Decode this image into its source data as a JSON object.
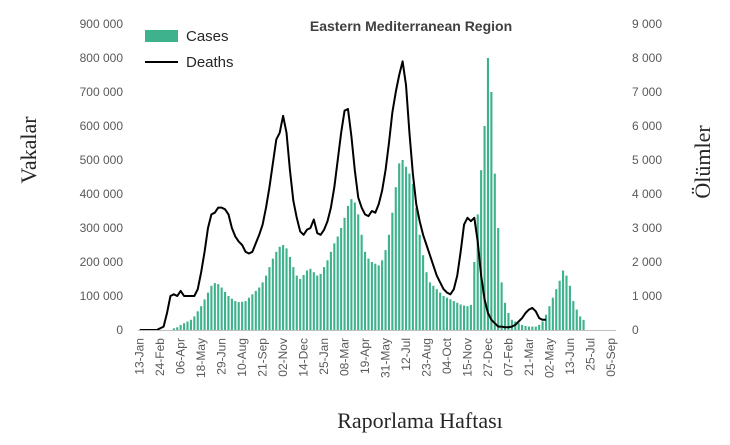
{
  "chart_data": {
    "type": "bar+line",
    "title": "Eastern Mediterranean Region",
    "xlabel": "Raporlama Haftası",
    "ylabel": "Vakalar",
    "y2label": "Ölümler",
    "ylim": [
      0,
      900000
    ],
    "y2lim": [
      0,
      9000
    ],
    "yticks": [
      "0",
      "100 000",
      "200 000",
      "300 000",
      "400 000",
      "500 000",
      "600 000",
      "700 000",
      "800 000",
      "900 000"
    ],
    "y2ticks": [
      "0",
      "1 000",
      "2 000",
      "3 000",
      "4 000",
      "5 000",
      "6 000",
      "7 000",
      "8 000",
      "9 000"
    ],
    "xtick_labels": [
      "13-Jan",
      "24-Feb",
      "06-Apr",
      "18-May",
      "29-Jun",
      "10-Aug",
      "21-Sep",
      "02-Nov",
      "14-Dec",
      "25-Jan",
      "08-Mar",
      "19-Apr",
      "31-May",
      "12-Jul",
      "23-Aug",
      "04-Oct",
      "15-Nov",
      "27-Dec",
      "07-Feb",
      "21-Mar",
      "02-May",
      "13-Jun",
      "25-Jul",
      "05-Sep"
    ],
    "xtick_week_index": [
      0,
      6,
      12,
      18,
      24,
      30,
      36,
      42,
      48,
      54,
      60,
      66,
      72,
      78,
      84,
      90,
      96,
      102,
      108,
      114,
      120,
      126,
      132,
      138
    ],
    "legend": [
      {
        "label": "Cases",
        "type": "bar",
        "color": "#3db28c"
      },
      {
        "label": "Deaths",
        "type": "line",
        "color": "#000000"
      }
    ],
    "series": [
      {
        "name": "Cases",
        "axis": "left",
        "values": [
          0,
          0,
          0,
          0,
          0,
          0,
          0,
          0,
          0,
          0,
          5000,
          8000,
          15000,
          20000,
          25000,
          30000,
          40000,
          55000,
          70000,
          90000,
          110000,
          130000,
          138000,
          135000,
          125000,
          112000,
          100000,
          92000,
          85000,
          82000,
          83000,
          85000,
          95000,
          105000,
          115000,
          125000,
          140000,
          160000,
          185000,
          210000,
          230000,
          245000,
          250000,
          240000,
          215000,
          185000,
          160000,
          150000,
          162000,
          175000,
          180000,
          170000,
          160000,
          165000,
          185000,
          205000,
          230000,
          255000,
          275000,
          300000,
          330000,
          365000,
          385000,
          375000,
          340000,
          280000,
          230000,
          210000,
          200000,
          195000,
          190000,
          205000,
          235000,
          280000,
          345000,
          420000,
          490000,
          500000,
          480000,
          460000,
          430000,
          360000,
          280000,
          220000,
          170000,
          140000,
          130000,
          120000,
          110000,
          100000,
          95000,
          90000,
          85000,
          80000,
          75000,
          72000,
          70000,
          74000,
          200000,
          340000,
          470000,
          600000,
          800000,
          700000,
          460000,
          300000,
          140000,
          80000,
          50000,
          30000,
          25000,
          20000,
          15000,
          12000,
          10000,
          10000,
          10000,
          15000,
          25000,
          45000,
          70000,
          95000,
          120000,
          145000,
          175000,
          160000,
          130000,
          85000,
          60000,
          40000,
          30000
        ],
        "x_start_index": 0,
        "x_step": 1
      },
      {
        "name": "Deaths",
        "axis": "right",
        "points": [
          [
            0,
            0
          ],
          [
            5,
            0
          ],
          [
            7,
            100
          ],
          [
            8,
            500
          ],
          [
            9,
            1000
          ],
          [
            10,
            1050
          ],
          [
            11,
            1000
          ],
          [
            12,
            1150
          ],
          [
            13,
            1000
          ],
          [
            14,
            1000
          ],
          [
            16,
            1000
          ],
          [
            17,
            1200
          ],
          [
            18,
            1700
          ],
          [
            19,
            2300
          ],
          [
            20,
            3000
          ],
          [
            21,
            3400
          ],
          [
            22,
            3450
          ],
          [
            23,
            3600
          ],
          [
            24,
            3600
          ],
          [
            25,
            3550
          ],
          [
            26,
            3400
          ],
          [
            27,
            3000
          ],
          [
            28,
            2750
          ],
          [
            29,
            2600
          ],
          [
            30,
            2500
          ],
          [
            31,
            2300
          ],
          [
            32,
            2250
          ],
          [
            33,
            2300
          ],
          [
            34,
            2550
          ],
          [
            35,
            2800
          ],
          [
            36,
            3100
          ],
          [
            37,
            3600
          ],
          [
            38,
            4200
          ],
          [
            39,
            4900
          ],
          [
            40,
            5600
          ],
          [
            41,
            5800
          ],
          [
            42,
            6300
          ],
          [
            43,
            5800
          ],
          [
            44,
            4700
          ],
          [
            45,
            3800
          ],
          [
            46,
            3300
          ],
          [
            47,
            2900
          ],
          [
            48,
            2800
          ],
          [
            49,
            2950
          ],
          [
            50,
            3000
          ],
          [
            51,
            3250
          ],
          [
            52,
            2850
          ],
          [
            53,
            2800
          ],
          [
            54,
            2950
          ],
          [
            55,
            3200
          ],
          [
            56,
            3600
          ],
          [
            57,
            4200
          ],
          [
            58,
            5000
          ],
          [
            59,
            5800
          ],
          [
            60,
            6450
          ],
          [
            61,
            6500
          ],
          [
            62,
            5700
          ],
          [
            63,
            4700
          ],
          [
            64,
            3900
          ],
          [
            65,
            3600
          ],
          [
            66,
            3400
          ],
          [
            67,
            3350
          ],
          [
            68,
            3500
          ],
          [
            69,
            3450
          ],
          [
            70,
            3700
          ],
          [
            71,
            4100
          ],
          [
            72,
            4700
          ],
          [
            73,
            5500
          ],
          [
            74,
            6400
          ],
          [
            75,
            7000
          ],
          [
            76,
            7500
          ],
          [
            77,
            7900
          ],
          [
            78,
            7200
          ],
          [
            79,
            5800
          ],
          [
            80,
            4600
          ],
          [
            81,
            3700
          ],
          [
            82,
            3200
          ],
          [
            83,
            2800
          ],
          [
            84,
            2500
          ],
          [
            85,
            2200
          ],
          [
            86,
            1900
          ],
          [
            87,
            1600
          ],
          [
            88,
            1400
          ],
          [
            89,
            1200
          ],
          [
            90,
            1100
          ],
          [
            91,
            1050
          ],
          [
            92,
            1200
          ],
          [
            93,
            1600
          ],
          [
            94,
            2300
          ],
          [
            95,
            3100
          ],
          [
            96,
            3300
          ],
          [
            97,
            3200
          ],
          [
            98,
            3300
          ],
          [
            99,
            2600
          ],
          [
            100,
            1600
          ],
          [
            101,
            900
          ],
          [
            102,
            500
          ],
          [
            103,
            300
          ],
          [
            104,
            200
          ],
          [
            105,
            100
          ],
          [
            106,
            100
          ],
          [
            107,
            80
          ],
          [
            108,
            80
          ],
          [
            109,
            100
          ],
          [
            110,
            150
          ],
          [
            111,
            250
          ],
          [
            112,
            350
          ],
          [
            113,
            500
          ],
          [
            114,
            600
          ],
          [
            115,
            650
          ],
          [
            116,
            550
          ],
          [
            117,
            350
          ],
          [
            118,
            300
          ],
          [
            119,
            300
          ]
        ]
      }
    ]
  }
}
